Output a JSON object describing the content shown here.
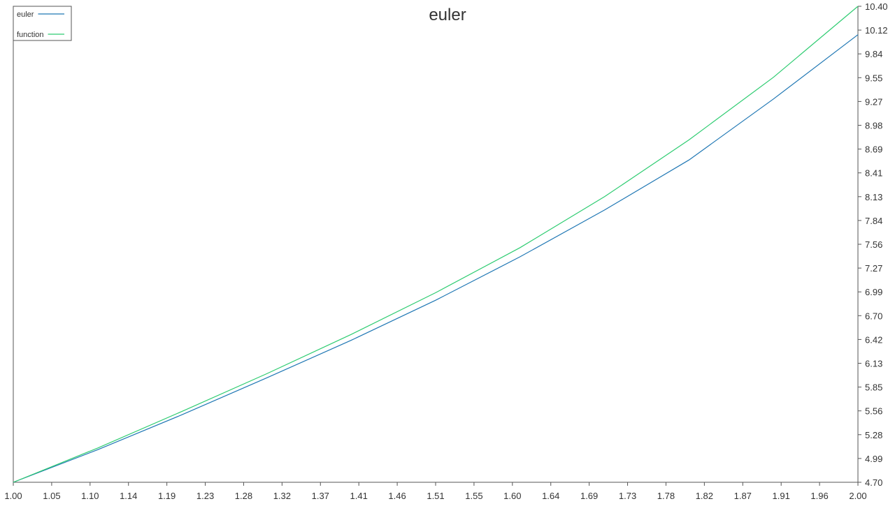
{
  "chart_data": {
    "type": "line",
    "title": "euler",
    "xlabel": "",
    "ylabel": "",
    "xlim": [
      1.0,
      2.0
    ],
    "ylim": [
      4.7,
      10.4
    ],
    "x_tick_labels": [
      "1.00",
      "1.05",
      "1.10",
      "1.14",
      "1.19",
      "1.23",
      "1.28",
      "1.32",
      "1.37",
      "1.41",
      "1.46",
      "1.51",
      "1.55",
      "1.60",
      "1.64",
      "1.69",
      "1.73",
      "1.78",
      "1.82",
      "1.87",
      "1.91",
      "1.96",
      "2.00"
    ],
    "y_tick_labels": [
      "4.70",
      "4.99",
      "5.28",
      "5.56",
      "5.85",
      "6.13",
      "6.42",
      "6.70",
      "6.99",
      "7.27",
      "7.56",
      "7.84",
      "8.13",
      "8.41",
      "8.69",
      "8.98",
      "9.27",
      "9.55",
      "9.84",
      "10.12",
      "10.40"
    ],
    "y_axis_side": "right",
    "grid": false,
    "legend_position": "top-left",
    "series": [
      {
        "name": "euler",
        "color": "#1f77b4",
        "x": [
          1.0,
          1.1,
          1.2,
          1.3,
          1.4,
          1.5,
          1.6,
          1.7,
          1.8,
          1.9,
          2.0
        ],
        "y": [
          4.7,
          5.09,
          5.51,
          5.95,
          6.4,
          6.88,
          7.4,
          7.96,
          8.56,
          9.29,
          10.06
        ]
      },
      {
        "name": "function",
        "color": "#2ecc71",
        "x": [
          1.0,
          1.1,
          1.2,
          1.3,
          1.4,
          1.5,
          1.6,
          1.7,
          1.8,
          1.9,
          2.0
        ],
        "y": [
          4.7,
          5.11,
          5.55,
          6.0,
          6.47,
          6.97,
          7.51,
          8.12,
          8.8,
          9.55,
          10.4
        ]
      }
    ]
  }
}
